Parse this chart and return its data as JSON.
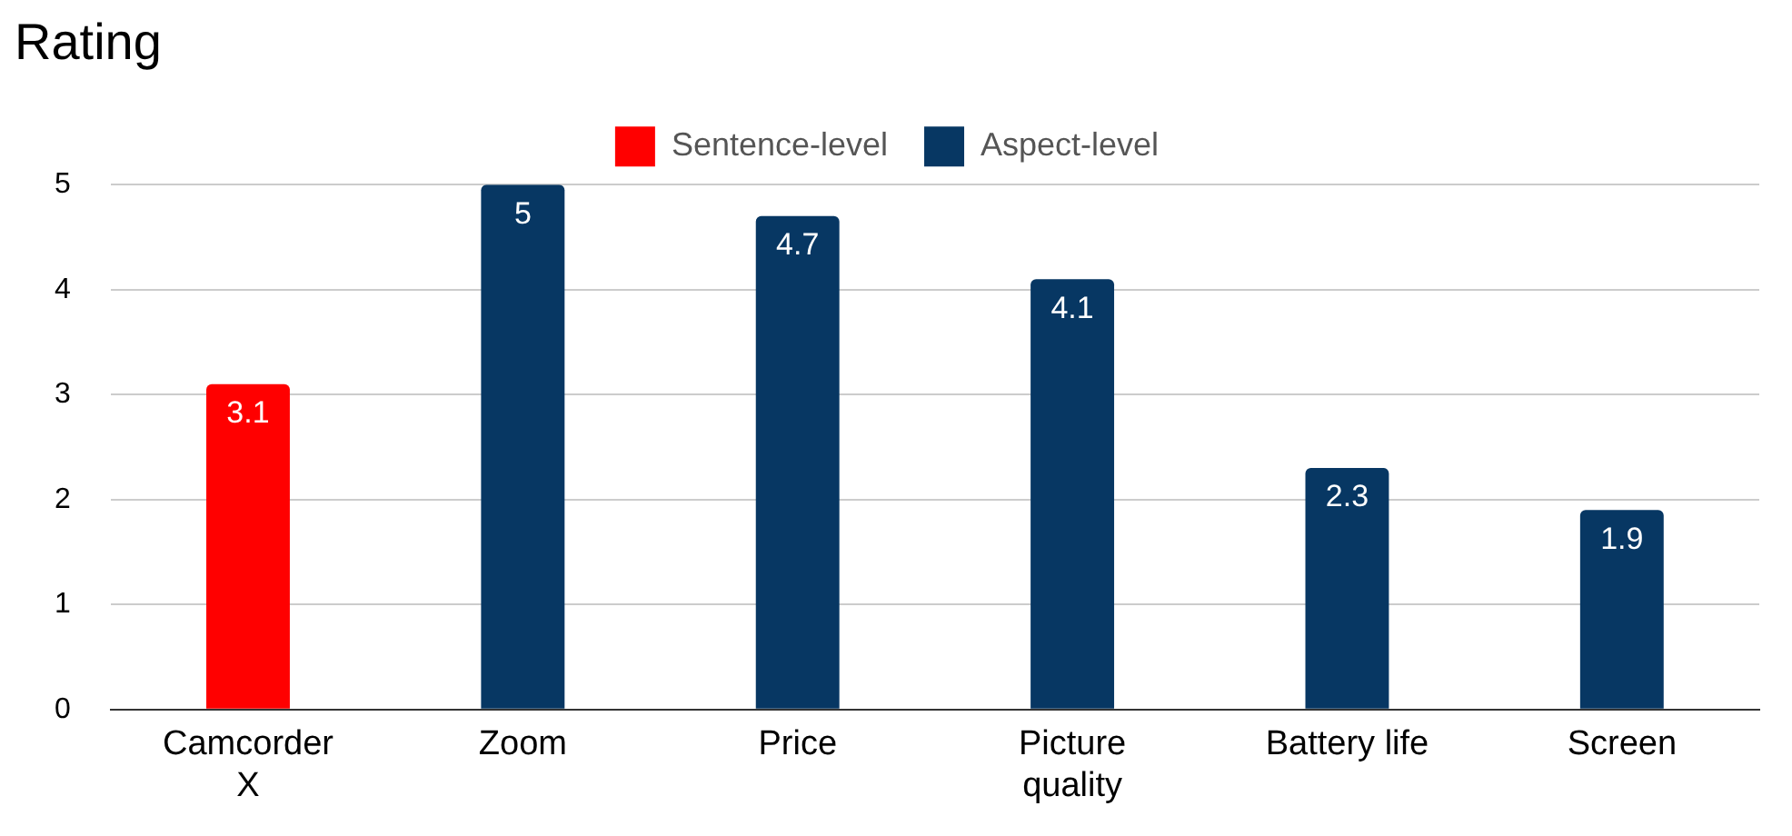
{
  "chart_data": {
    "type": "bar",
    "title": "Rating",
    "categories": [
      "Camcorder X",
      "Zoom",
      "Price",
      "Picture quality",
      "Battery life",
      "Screen"
    ],
    "series": [
      {
        "name": "Sentence-level",
        "color": "#ff0000",
        "values": [
          3.1,
          null,
          null,
          null,
          null,
          null
        ]
      },
      {
        "name": "Aspect-level",
        "color": "#073763",
        "values": [
          null,
          5,
          4.7,
          4.1,
          2.3,
          1.9
        ]
      }
    ],
    "ylim": [
      0,
      5
    ],
    "yticks": [
      0,
      1,
      2,
      3,
      4,
      5
    ],
    "grid": "y",
    "legend": "top",
    "data_labels": true
  }
}
